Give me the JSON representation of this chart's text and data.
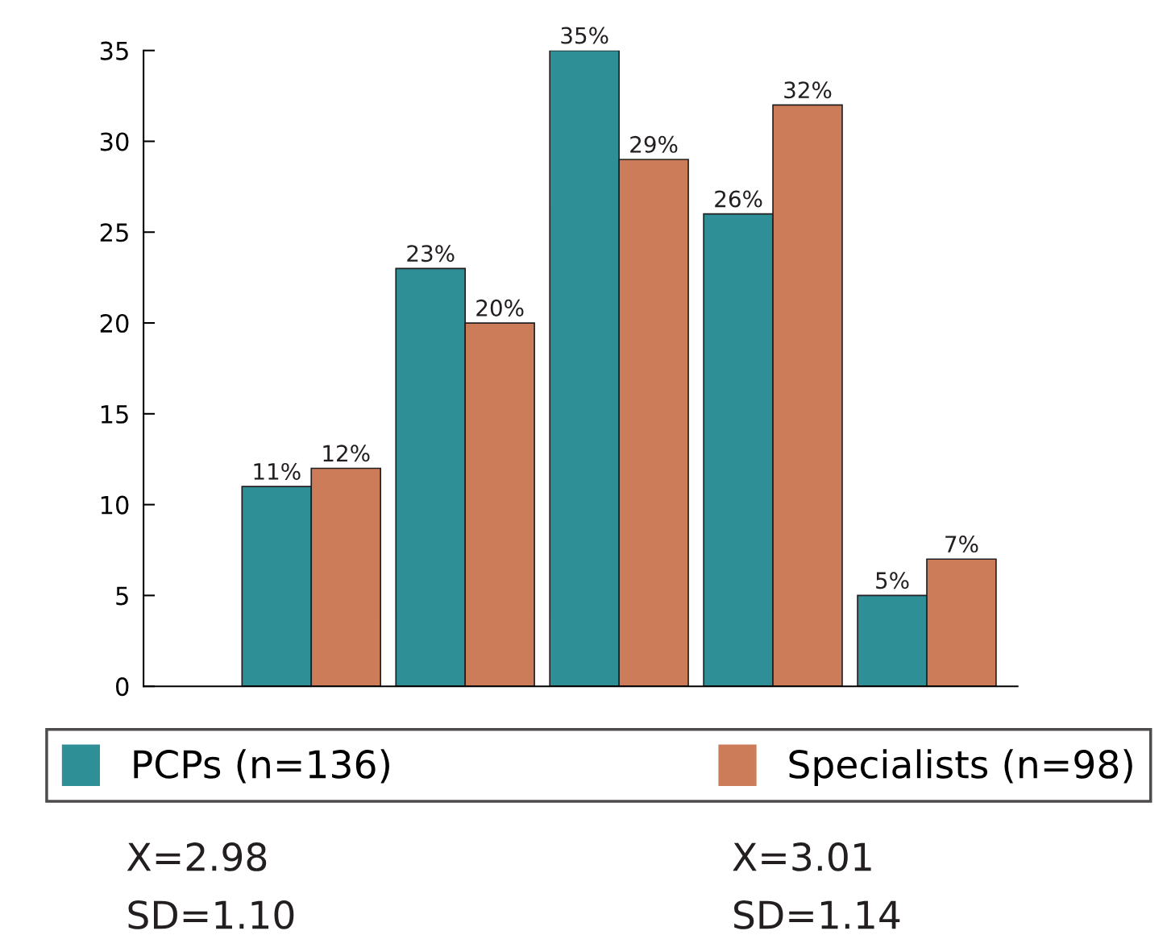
{
  "chart_data": {
    "type": "bar",
    "categories": [
      null,
      null,
      null,
      null,
      null
    ],
    "series": [
      {
        "name": "PCPs (n=136)",
        "color": "#2e8f97",
        "values": [
          11,
          23,
          35,
          26,
          5
        ],
        "value_labels": [
          "11%",
          "23%",
          "35%",
          "26%",
          "5%"
        ]
      },
      {
        "name": "Specialists (n=98)",
        "color": "#cd7c59",
        "values": [
          12,
          20,
          29,
          32,
          7
        ],
        "value_labels": [
          "12%",
          "20%",
          "29%",
          "32%",
          "7%"
        ]
      }
    ],
    "ylim": [
      0,
      35
    ],
    "yticks": [
      0,
      5,
      10,
      15,
      20,
      25,
      30,
      35
    ],
    "grid": false,
    "legend": "bottom",
    "annotations": [
      "X=2.98",
      "SD=1.10",
      "X=3.01",
      "SD=1.14"
    ]
  }
}
